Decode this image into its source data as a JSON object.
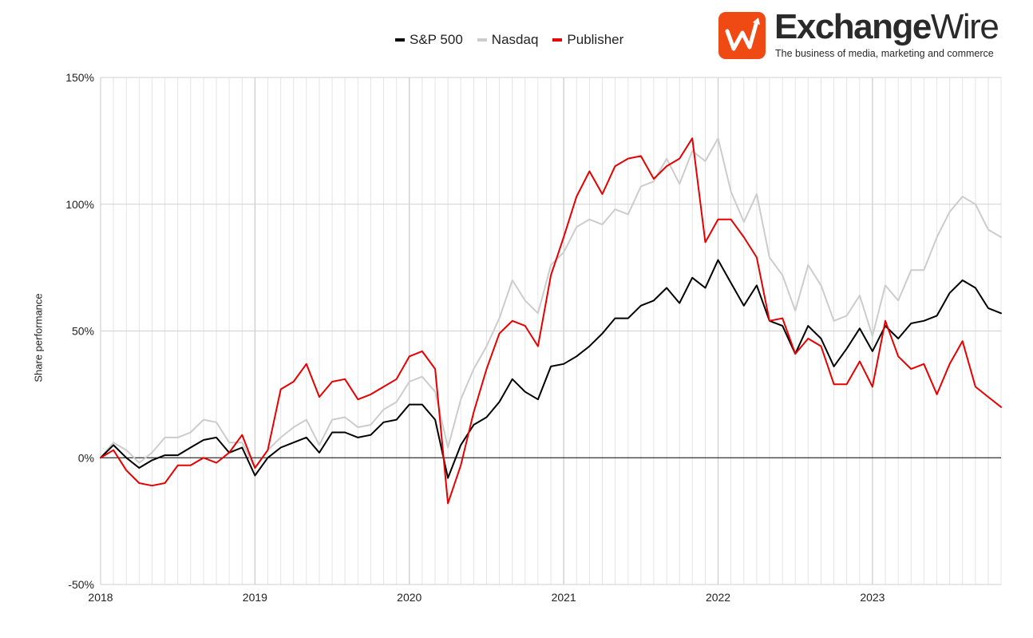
{
  "chart_data": {
    "type": "line",
    "title": "",
    "xlabel": "",
    "ylabel": "Share performance",
    "ylim": [
      -50,
      150
    ],
    "yticks": [
      -50,
      0,
      50,
      100,
      150
    ],
    "ytick_labels": [
      "-50%",
      "0%",
      "50%",
      "100%",
      "150%"
    ],
    "xlim": [
      2018.0,
      2023.833
    ],
    "xticks": [
      2018,
      2019,
      2020,
      2021,
      2022,
      2023
    ],
    "xtick_labels": [
      "2018",
      "2019",
      "2020",
      "2021",
      "2022",
      "2023"
    ],
    "grid": true,
    "legend_position": "top-center",
    "x": [
      2018.0,
      2018.083,
      2018.167,
      2018.25,
      2018.333,
      2018.417,
      2018.5,
      2018.583,
      2018.667,
      2018.75,
      2018.833,
      2018.917,
      2019.0,
      2019.083,
      2019.167,
      2019.25,
      2019.333,
      2019.417,
      2019.5,
      2019.583,
      2019.667,
      2019.75,
      2019.833,
      2019.917,
      2020.0,
      2020.083,
      2020.167,
      2020.25,
      2020.333,
      2020.417,
      2020.5,
      2020.583,
      2020.667,
      2020.75,
      2020.833,
      2020.917,
      2021.0,
      2021.083,
      2021.167,
      2021.25,
      2021.333,
      2021.417,
      2021.5,
      2021.583,
      2021.667,
      2021.75,
      2021.833,
      2021.917,
      2022.0,
      2022.083,
      2022.167,
      2022.25,
      2022.333,
      2022.417,
      2022.5,
      2022.583,
      2022.667,
      2022.75,
      2022.833,
      2022.917,
      2023.0,
      2023.083,
      2023.167,
      2023.25,
      2023.333,
      2023.417,
      2023.5,
      2023.583,
      2023.667,
      2023.75,
      2023.833
    ],
    "series": [
      {
        "name": "S&P 500",
        "color": "#000000",
        "values": [
          0,
          5,
          0,
          -4,
          -1,
          1,
          1,
          4,
          7,
          8,
          2,
          4,
          -7,
          0,
          4,
          6,
          8,
          2,
          10,
          10,
          8,
          9,
          14,
          15,
          21,
          21,
          15,
          -8,
          5,
          13,
          16,
          22,
          31,
          26,
          23,
          36,
          37,
          40,
          44,
          49,
          55,
          55,
          60,
          62,
          67,
          61,
          71,
          67,
          78,
          69,
          60,
          68,
          54,
          52,
          41,
          52,
          47,
          36,
          43,
          51,
          42,
          52,
          47,
          53,
          54,
          56,
          65,
          70,
          67,
          59,
          57
        ]
      },
      {
        "name": "Nasdaq",
        "color": "#cccccc",
        "values": [
          0,
          6,
          3,
          -2,
          2,
          8,
          8,
          10,
          15,
          14,
          6,
          6,
          -4,
          3,
          8,
          12,
          15,
          5,
          15,
          16,
          12,
          13,
          19,
          22,
          30,
          32,
          26,
          4,
          23,
          35,
          44,
          55,
          70,
          62,
          57,
          76,
          81,
          91,
          94,
          92,
          98,
          96,
          107,
          109,
          118,
          108,
          121,
          117,
          126,
          105,
          93,
          104,
          79,
          72,
          58,
          76,
          68,
          54,
          56,
          64,
          48,
          68,
          62,
          74,
          74,
          87,
          97,
          103,
          100,
          90,
          87
        ]
      },
      {
        "name": "Publisher",
        "color": "#e60000",
        "values": [
          0,
          3,
          -5,
          -10,
          -11,
          -10,
          -3,
          -3,
          0,
          -2,
          2,
          9,
          -4,
          3,
          27,
          30,
          37,
          24,
          30,
          31,
          23,
          25,
          28,
          31,
          40,
          42,
          35,
          -18,
          -3,
          18,
          35,
          49,
          54,
          52,
          44,
          72,
          87,
          103,
          113,
          104,
          115,
          118,
          119,
          110,
          115,
          118,
          126,
          85,
          94,
          94,
          87,
          79,
          54,
          55,
          41,
          47,
          44,
          29,
          29,
          38,
          28,
          54,
          40,
          35,
          37,
          25,
          37,
          46,
          28,
          24,
          20
        ]
      }
    ]
  },
  "logo": {
    "name_bold": "Exchange",
    "name_thin": "Wire",
    "tagline": "The business of media, marketing and commerce"
  }
}
